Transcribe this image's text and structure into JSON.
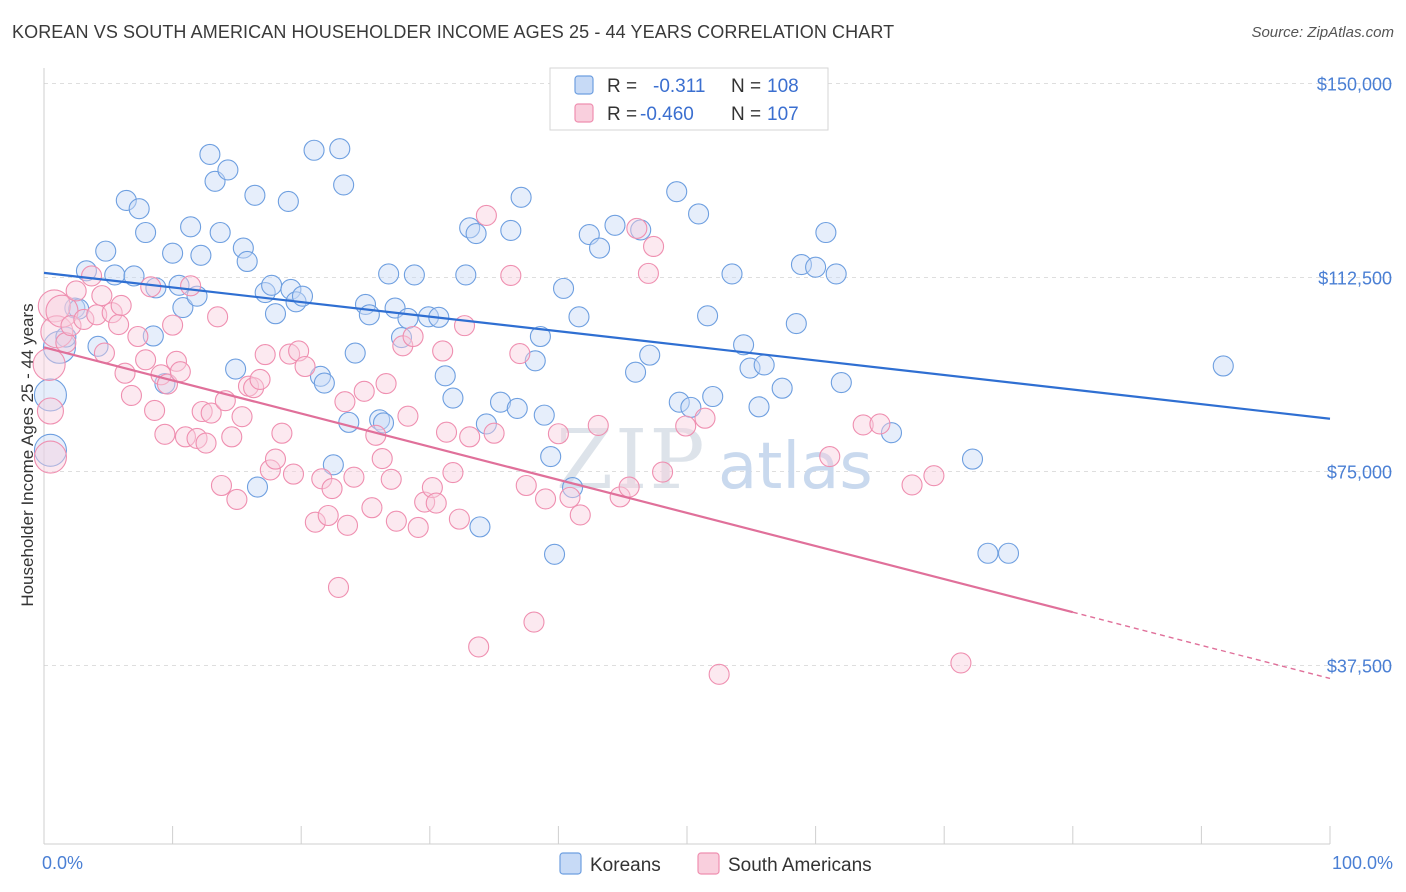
{
  "header": {
    "title": "KOREAN VS SOUTH AMERICAN HOUSEHOLDER INCOME AGES 25 - 44 YEARS CORRELATION CHART",
    "source": "Source: ZipAtlas.com"
  },
  "watermark": {
    "zip": "ZIP",
    "atlas": "atlas"
  },
  "legend_top": {
    "rows": [
      {
        "r_label": "R = ",
        "r_value": "-0.311",
        "n_label": "N = ",
        "n_value": "108",
        "color": "#6e9fe0"
      },
      {
        "r_label": "R = ",
        "r_value": "-0.460",
        "n_label": "N = ",
        "n_value": "107",
        "color": "#ef8fb0"
      }
    ]
  },
  "legend_bottom": [
    {
      "label": "Koreans",
      "color": "#6e9fe0"
    },
    {
      "label": "South Americans",
      "color": "#ef8fb0"
    }
  ],
  "chart_data": {
    "type": "scatter",
    "title": "KOREAN VS SOUTH AMERICAN HOUSEHOLDER INCOME AGES 25 - 44 YEARS CORRELATION CHART",
    "xlabel": "",
    "ylabel": "Householder Income Ages 25 - 44 years",
    "xlim": [
      0,
      100
    ],
    "ylim": [
      3000,
      153000
    ],
    "x_tick_labels": {
      "min": "0.0%",
      "max": "100.0%"
    },
    "y_ticks": [
      {
        "value": 150000,
        "label": "$150,000"
      },
      {
        "value": 112500,
        "label": "$112,500"
      },
      {
        "value": 75000,
        "label": "$75,000"
      },
      {
        "value": 37500,
        "label": "$37,500"
      }
    ],
    "grid": true,
    "series": [
      {
        "name": "Koreans",
        "color": "#6e9fe0",
        "trend": {
          "x0": 0,
          "y0": 113400,
          "x1": 100,
          "y1": 85200
        },
        "points": [
          [
            0.5,
            89800
          ],
          [
            0.5,
            79100
          ],
          [
            1.2,
            99000
          ],
          [
            1.7,
            101000
          ],
          [
            2.4,
            106600
          ],
          [
            2.7,
            106400
          ],
          [
            3.3,
            113800
          ],
          [
            4.2,
            99200
          ],
          [
            4.8,
            117600
          ],
          [
            5.5,
            113000
          ],
          [
            6.4,
            127400
          ],
          [
            7.0,
            112800
          ],
          [
            7.4,
            125800
          ],
          [
            7.9,
            121200
          ],
          [
            8.5,
            101200
          ],
          [
            8.7,
            110500
          ],
          [
            9.4,
            92000
          ],
          [
            10.0,
            117200
          ],
          [
            10.5,
            111000
          ],
          [
            10.8,
            106700
          ],
          [
            11.4,
            122300
          ],
          [
            11.9,
            108900
          ],
          [
            12.2,
            116800
          ],
          [
            12.9,
            136300
          ],
          [
            13.3,
            131100
          ],
          [
            13.7,
            121200
          ],
          [
            14.3,
            133300
          ],
          [
            14.9,
            94800
          ],
          [
            15.5,
            118200
          ],
          [
            15.8,
            115600
          ],
          [
            16.4,
            128400
          ],
          [
            16.6,
            72000
          ],
          [
            17.2,
            109600
          ],
          [
            17.7,
            111000
          ],
          [
            18.0,
            105500
          ],
          [
            19.0,
            127200
          ],
          [
            19.2,
            110200
          ],
          [
            19.6,
            107800
          ],
          [
            20.1,
            108900
          ],
          [
            21.0,
            137100
          ],
          [
            21.5,
            93400
          ],
          [
            21.8,
            92100
          ],
          [
            22.5,
            76300
          ],
          [
            23.0,
            137400
          ],
          [
            23.3,
            130400
          ],
          [
            23.7,
            84500
          ],
          [
            24.2,
            97900
          ],
          [
            25.0,
            107300
          ],
          [
            25.3,
            105300
          ],
          [
            26.1,
            85000
          ],
          [
            26.4,
            84400
          ],
          [
            26.8,
            113200
          ],
          [
            27.3,
            106600
          ],
          [
            27.8,
            100900
          ],
          [
            28.3,
            104600
          ],
          [
            28.8,
            113000
          ],
          [
            29.9,
            104900
          ],
          [
            30.7,
            104800
          ],
          [
            31.2,
            93500
          ],
          [
            31.8,
            89200
          ],
          [
            32.8,
            113000
          ],
          [
            33.1,
            122100
          ],
          [
            33.6,
            121000
          ],
          [
            33.9,
            64300
          ],
          [
            34.4,
            84200
          ],
          [
            35.5,
            88400
          ],
          [
            36.3,
            121600
          ],
          [
            36.8,
            87200
          ],
          [
            37.1,
            128000
          ],
          [
            38.2,
            96400
          ],
          [
            38.6,
            101100
          ],
          [
            38.9,
            85900
          ],
          [
            39.4,
            77900
          ],
          [
            39.7,
            59000
          ],
          [
            40.4,
            110400
          ],
          [
            41.1,
            71900
          ],
          [
            41.6,
            104900
          ],
          [
            42.4,
            120800
          ],
          [
            43.2,
            118200
          ],
          [
            44.4,
            122600
          ],
          [
            46.0,
            94200
          ],
          [
            46.4,
            121700
          ],
          [
            47.1,
            97500
          ],
          [
            49.2,
            129100
          ],
          [
            49.4,
            88400
          ],
          [
            50.3,
            87400
          ],
          [
            50.9,
            124800
          ],
          [
            51.6,
            105100
          ],
          [
            52.0,
            89500
          ],
          [
            53.5,
            113200
          ],
          [
            54.4,
            99500
          ],
          [
            54.9,
            95000
          ],
          [
            55.6,
            87500
          ],
          [
            56.0,
            95600
          ],
          [
            57.4,
            91100
          ],
          [
            58.5,
            103600
          ],
          [
            58.9,
            115000
          ],
          [
            60.0,
            114500
          ],
          [
            60.8,
            121200
          ],
          [
            61.6,
            113200
          ],
          [
            62.0,
            92200
          ],
          [
            65.9,
            82500
          ],
          [
            72.2,
            77400
          ],
          [
            73.4,
            59200
          ],
          [
            75.0,
            59200
          ],
          [
            91.7,
            95400
          ]
        ]
      },
      {
        "name": "South Americans",
        "color": "#ef8fb0",
        "trend": {
          "x0": 0,
          "y0": 99000,
          "x1": 80,
          "y1": 47800,
          "dash_to_x": 100,
          "dash_to_y": 35000
        },
        "points": [
          [
            0.4,
            95700
          ],
          [
            0.5,
            86700
          ],
          [
            0.5,
            77800
          ],
          [
            0.8,
            107000
          ],
          [
            1.0,
            102000
          ],
          [
            1.4,
            106000
          ],
          [
            1.7,
            99900
          ],
          [
            2.1,
            103200
          ],
          [
            2.5,
            109900
          ],
          [
            3.1,
            104400
          ],
          [
            3.7,
            112800
          ],
          [
            4.1,
            105300
          ],
          [
            4.5,
            109000
          ],
          [
            4.7,
            97900
          ],
          [
            5.3,
            105700
          ],
          [
            5.8,
            103400
          ],
          [
            6.0,
            107100
          ],
          [
            6.3,
            94000
          ],
          [
            6.8,
            89700
          ],
          [
            7.3,
            101100
          ],
          [
            7.9,
            96600
          ],
          [
            8.3,
            110700
          ],
          [
            8.6,
            86800
          ],
          [
            9.1,
            93700
          ],
          [
            9.4,
            82200
          ],
          [
            9.6,
            91900
          ],
          [
            10.0,
            103300
          ],
          [
            10.3,
            96300
          ],
          [
            10.6,
            94300
          ],
          [
            11.0,
            81700
          ],
          [
            11.4,
            110900
          ],
          [
            11.9,
            81400
          ],
          [
            12.3,
            86600
          ],
          [
            12.6,
            80500
          ],
          [
            13.0,
            86300
          ],
          [
            13.5,
            104900
          ],
          [
            13.8,
            72300
          ],
          [
            14.1,
            88700
          ],
          [
            14.6,
            81700
          ],
          [
            15.0,
            69600
          ],
          [
            15.4,
            85600
          ],
          [
            15.9,
            91500
          ],
          [
            16.3,
            91200
          ],
          [
            16.8,
            92800
          ],
          [
            17.2,
            97600
          ],
          [
            17.6,
            75300
          ],
          [
            18.0,
            77400
          ],
          [
            18.5,
            82400
          ],
          [
            19.1,
            97700
          ],
          [
            19.4,
            74500
          ],
          [
            19.8,
            98300
          ],
          [
            20.3,
            95300
          ],
          [
            21.1,
            65200
          ],
          [
            21.6,
            73600
          ],
          [
            22.1,
            66500
          ],
          [
            22.4,
            71700
          ],
          [
            22.9,
            52600
          ],
          [
            23.4,
            88500
          ],
          [
            23.6,
            64600
          ],
          [
            24.1,
            73900
          ],
          [
            24.9,
            90500
          ],
          [
            25.5,
            68000
          ],
          [
            25.8,
            82000
          ],
          [
            26.3,
            77500
          ],
          [
            26.6,
            92000
          ],
          [
            27.0,
            73500
          ],
          [
            27.4,
            65400
          ],
          [
            27.9,
            99300
          ],
          [
            28.3,
            85700
          ],
          [
            28.7,
            101100
          ],
          [
            29.1,
            64200
          ],
          [
            29.6,
            69100
          ],
          [
            30.2,
            71900
          ],
          [
            30.5,
            68900
          ],
          [
            31.0,
            98300
          ],
          [
            31.3,
            82600
          ],
          [
            31.8,
            74800
          ],
          [
            32.3,
            65800
          ],
          [
            32.7,
            103200
          ],
          [
            33.1,
            81700
          ],
          [
            33.8,
            41100
          ],
          [
            34.4,
            124500
          ],
          [
            35.0,
            82400
          ],
          [
            36.3,
            112900
          ],
          [
            37.0,
            97800
          ],
          [
            37.5,
            72300
          ],
          [
            38.1,
            45900
          ],
          [
            39.0,
            69700
          ],
          [
            40.0,
            82300
          ],
          [
            40.9,
            70000
          ],
          [
            41.7,
            66600
          ],
          [
            43.1,
            83900
          ],
          [
            44.8,
            70100
          ],
          [
            45.5,
            72000
          ],
          [
            46.1,
            122000
          ],
          [
            47.0,
            113300
          ],
          [
            47.4,
            118500
          ],
          [
            48.1,
            74900
          ],
          [
            49.9,
            83800
          ],
          [
            51.4,
            85300
          ],
          [
            52.5,
            35800
          ],
          [
            61.1,
            77900
          ],
          [
            63.7,
            84000
          ],
          [
            65.0,
            84200
          ],
          [
            67.5,
            72400
          ],
          [
            69.2,
            74200
          ],
          [
            71.3,
            38000
          ]
        ]
      }
    ]
  }
}
